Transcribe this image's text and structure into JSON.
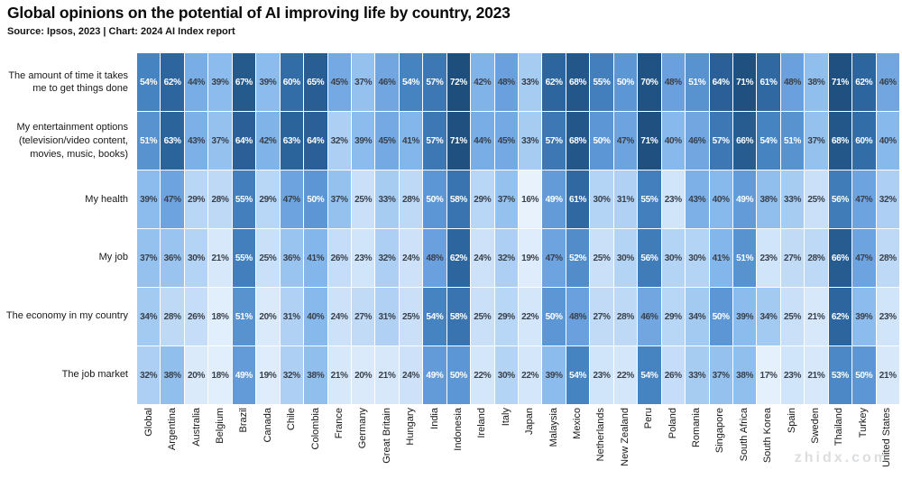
{
  "header": {
    "title": "Global opinions on the potential of AI improving life by country, 2023",
    "source": "Source: Ipsos, 2023 | Chart: 2024 AI Index report"
  },
  "chart_data": {
    "type": "heatmap",
    "title": "Global opinions on the potential of AI improving life by country, 2023",
    "rows": [
      "The amount of time it takes\nme to get things done",
      "My entertainment options\n(television/video content,\nmovies, music, books)",
      "My health",
      "My job",
      "The economy in my country",
      "The job market"
    ],
    "columns": [
      "Global",
      "Argentina",
      "Australia",
      "Belgium",
      "Brazil",
      "Canada",
      "Chile",
      "Colombia",
      "France",
      "Germany",
      "Great Britain",
      "Hungary",
      "India",
      "Indonesia",
      "Ireland",
      "Italy",
      "Japan",
      "Malaysia",
      "Mexico",
      "Netherlands",
      "New Zealand",
      "Peru",
      "Poland",
      "Romania",
      "Singapore",
      "South Africa",
      "South Korea",
      "Spain",
      "Sweden",
      "Thailand",
      "Turkey",
      "United States"
    ],
    "values": [
      [
        54,
        62,
        44,
        39,
        67,
        39,
        60,
        65,
        45,
        37,
        46,
        54,
        57,
        72,
        42,
        48,
        33,
        62,
        68,
        55,
        50,
        70,
        48,
        51,
        64,
        71,
        61,
        48,
        38,
        71,
        62,
        46
      ],
      [
        51,
        63,
        43,
        37,
        64,
        42,
        63,
        64,
        32,
        39,
        45,
        41,
        57,
        71,
        44,
        45,
        33,
        57,
        68,
        50,
        47,
        71,
        40,
        46,
        57,
        66,
        54,
        51,
        37,
        68,
        60,
        40
      ],
      [
        39,
        47,
        29,
        28,
        55,
        29,
        47,
        50,
        37,
        25,
        33,
        28,
        50,
        58,
        29,
        37,
        16,
        49,
        61,
        30,
        31,
        55,
        23,
        43,
        40,
        49,
        38,
        33,
        25,
        56,
        47,
        32
      ],
      [
        37,
        36,
        30,
        21,
        55,
        25,
        36,
        41,
        26,
        23,
        32,
        24,
        48,
        62,
        24,
        32,
        19,
        47,
        52,
        25,
        30,
        56,
        30,
        30,
        41,
        51,
        23,
        27,
        28,
        66,
        47,
        28
      ],
      [
        34,
        28,
        26,
        18,
        51,
        20,
        31,
        40,
        24,
        27,
        31,
        25,
        54,
        58,
        25,
        29,
        22,
        50,
        48,
        27,
        28,
        46,
        29,
        34,
        50,
        39,
        34,
        25,
        21,
        62,
        39,
        23
      ],
      [
        32,
        38,
        20,
        18,
        49,
        19,
        32,
        38,
        21,
        20,
        21,
        24,
        49,
        50,
        22,
        30,
        22,
        39,
        54,
        23,
        22,
        54,
        26,
        33,
        37,
        38,
        17,
        23,
        21,
        53,
        50,
        21
      ]
    ],
    "unit": "%",
    "value_range": [
      16,
      72
    ],
    "legend": "none",
    "grid": "white 1px gaps between cells",
    "color_scale": {
      "stops": [
        [
          16,
          "#e8f2fd"
        ],
        [
          24,
          "#cde2f9"
        ],
        [
          32,
          "#accff3"
        ],
        [
          40,
          "#87b9ec"
        ],
        [
          48,
          "#69a0dd"
        ],
        [
          54,
          "#4683c1"
        ],
        [
          62,
          "#2d659e"
        ],
        [
          72,
          "#1d4e7c"
        ]
      ],
      "white_text_min": 49,
      "dark_text_color": "#3a4049",
      "light_text_color": "#ffffff"
    }
  },
  "watermark": "zhidx.com"
}
